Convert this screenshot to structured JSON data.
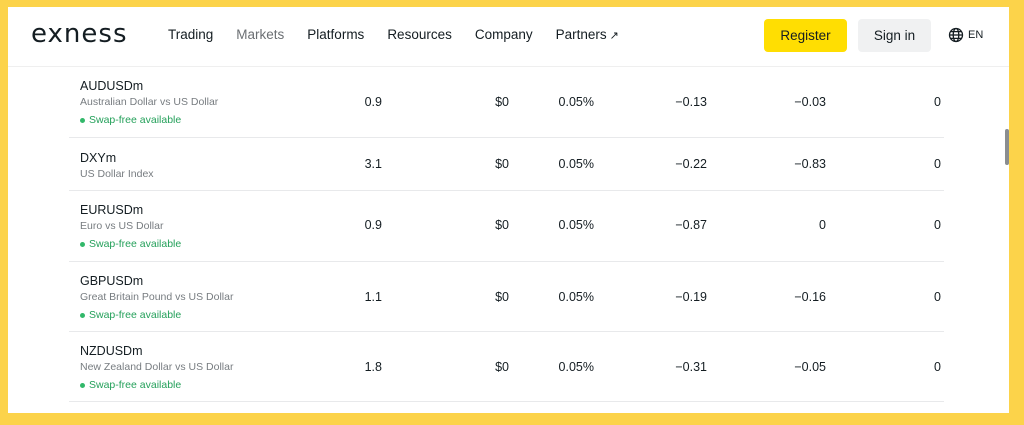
{
  "header": {
    "logo": "exness",
    "nav": [
      {
        "label": "Trading",
        "muted": false,
        "arrow": ""
      },
      {
        "label": "Markets",
        "muted": true,
        "arrow": ""
      },
      {
        "label": "Platforms",
        "muted": false,
        "arrow": ""
      },
      {
        "label": "Resources",
        "muted": false,
        "arrow": ""
      },
      {
        "label": "Company",
        "muted": false,
        "arrow": ""
      },
      {
        "label": "Partners",
        "muted": false,
        "arrow": "↗"
      }
    ],
    "register_label": "Register",
    "signin_label": "Sign in",
    "language": "EN",
    "language_icon": "globe-icon"
  },
  "colors": {
    "accent": "#ffde02",
    "swap_green": "#24a05a",
    "border": "#fcd34a"
  },
  "instruments": [
    {
      "symbol": "AUDUSDm",
      "description": "Australian Dollar vs US Dollar",
      "swap_free": "Swap-free available",
      "spread": "0.9",
      "commission": "$0",
      "margin": "0.05%",
      "swap_long": "−0.13",
      "swap_short": "−0.03",
      "extra": "0"
    },
    {
      "symbol": "DXYm",
      "description": "US Dollar Index",
      "swap_free": "",
      "spread": "3.1",
      "commission": "$0",
      "margin": "0.05%",
      "swap_long": "−0.22",
      "swap_short": "−0.83",
      "extra": "0"
    },
    {
      "symbol": "EURUSDm",
      "description": "Euro vs US Dollar",
      "swap_free": "Swap-free available",
      "spread": "0.9",
      "commission": "$0",
      "margin": "0.05%",
      "swap_long": "−0.87",
      "swap_short": "0",
      "extra": "0"
    },
    {
      "symbol": "GBPUSDm",
      "description": "Great Britain Pound vs US Dollar",
      "swap_free": "Swap-free available",
      "spread": "1.1",
      "commission": "$0",
      "margin": "0.05%",
      "swap_long": "−0.19",
      "swap_short": "−0.16",
      "extra": "0"
    },
    {
      "symbol": "NZDUSDm",
      "description": "New Zealand Dollar vs US Dollar",
      "swap_free": "Swap-free available",
      "spread": "1.8",
      "commission": "$0",
      "margin": "0.05%",
      "swap_long": "−0.31",
      "swap_short": "−0.05",
      "extra": "0"
    }
  ]
}
